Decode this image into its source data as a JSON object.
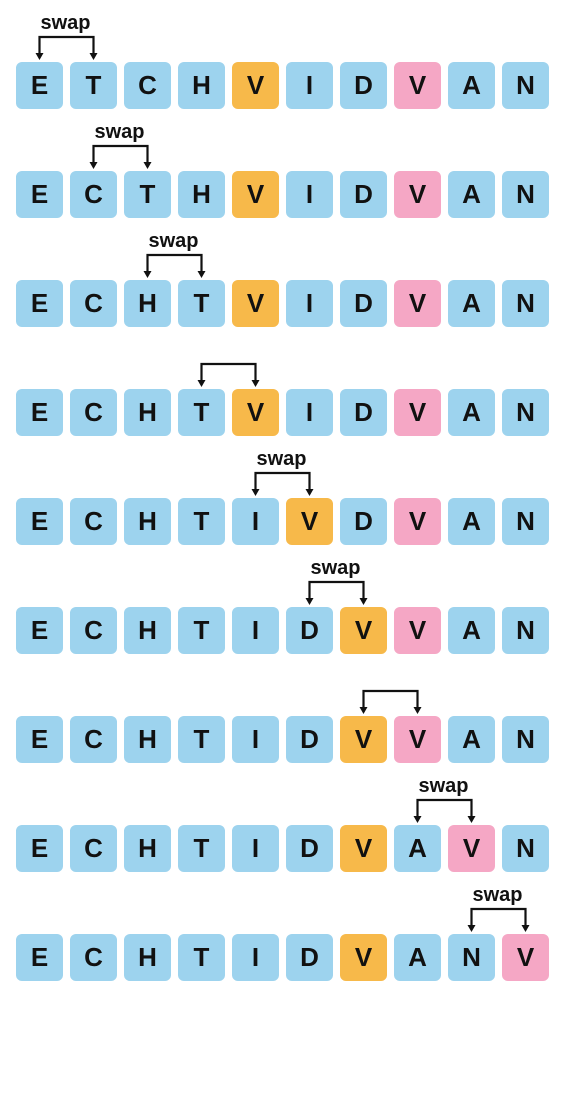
{
  "colors": {
    "blue": "#9dd3ee",
    "orange": "#f7b94a",
    "pink": "#f5a7c5",
    "text": "#111111",
    "arrow": "#111111"
  },
  "swap_label_text": "swap",
  "cell_size": 51,
  "cell_gap": 3,
  "cell_font_size": 26,
  "cell_border_radius": 8,
  "swap_label_font_size": 20,
  "steps": [
    {
      "show_label": true,
      "swap_from": 0,
      "swap_to": 1,
      "cells": [
        {
          "letter": "E",
          "color": "blue"
        },
        {
          "letter": "T",
          "color": "blue"
        },
        {
          "letter": "C",
          "color": "blue"
        },
        {
          "letter": "H",
          "color": "blue"
        },
        {
          "letter": "V",
          "color": "orange"
        },
        {
          "letter": "I",
          "color": "blue"
        },
        {
          "letter": "D",
          "color": "blue"
        },
        {
          "letter": "V",
          "color": "pink"
        },
        {
          "letter": "A",
          "color": "blue"
        },
        {
          "letter": "N",
          "color": "blue"
        }
      ]
    },
    {
      "show_label": true,
      "swap_from": 1,
      "swap_to": 2,
      "cells": [
        {
          "letter": "E",
          "color": "blue"
        },
        {
          "letter": "C",
          "color": "blue"
        },
        {
          "letter": "T",
          "color": "blue"
        },
        {
          "letter": "H",
          "color": "blue"
        },
        {
          "letter": "V",
          "color": "orange"
        },
        {
          "letter": "I",
          "color": "blue"
        },
        {
          "letter": "D",
          "color": "blue"
        },
        {
          "letter": "V",
          "color": "pink"
        },
        {
          "letter": "A",
          "color": "blue"
        },
        {
          "letter": "N",
          "color": "blue"
        }
      ]
    },
    {
      "show_label": true,
      "swap_from": 2,
      "swap_to": 3,
      "cells": [
        {
          "letter": "E",
          "color": "blue"
        },
        {
          "letter": "C",
          "color": "blue"
        },
        {
          "letter": "H",
          "color": "blue"
        },
        {
          "letter": "T",
          "color": "blue"
        },
        {
          "letter": "V",
          "color": "orange"
        },
        {
          "letter": "I",
          "color": "blue"
        },
        {
          "letter": "D",
          "color": "blue"
        },
        {
          "letter": "V",
          "color": "pink"
        },
        {
          "letter": "A",
          "color": "blue"
        },
        {
          "letter": "N",
          "color": "blue"
        }
      ]
    },
    {
      "show_label": false,
      "swap_from": 3,
      "swap_to": 4,
      "cells": [
        {
          "letter": "E",
          "color": "blue"
        },
        {
          "letter": "C",
          "color": "blue"
        },
        {
          "letter": "H",
          "color": "blue"
        },
        {
          "letter": "T",
          "color": "blue"
        },
        {
          "letter": "V",
          "color": "orange"
        },
        {
          "letter": "I",
          "color": "blue"
        },
        {
          "letter": "D",
          "color": "blue"
        },
        {
          "letter": "V",
          "color": "pink"
        },
        {
          "letter": "A",
          "color": "blue"
        },
        {
          "letter": "N",
          "color": "blue"
        }
      ]
    },
    {
      "show_label": true,
      "swap_from": 4,
      "swap_to": 5,
      "cells": [
        {
          "letter": "E",
          "color": "blue"
        },
        {
          "letter": "C",
          "color": "blue"
        },
        {
          "letter": "H",
          "color": "blue"
        },
        {
          "letter": "T",
          "color": "blue"
        },
        {
          "letter": "I",
          "color": "blue"
        },
        {
          "letter": "V",
          "color": "orange"
        },
        {
          "letter": "D",
          "color": "blue"
        },
        {
          "letter": "V",
          "color": "pink"
        },
        {
          "letter": "A",
          "color": "blue"
        },
        {
          "letter": "N",
          "color": "blue"
        }
      ]
    },
    {
      "show_label": true,
      "swap_from": 5,
      "swap_to": 6,
      "cells": [
        {
          "letter": "E",
          "color": "blue"
        },
        {
          "letter": "C",
          "color": "blue"
        },
        {
          "letter": "H",
          "color": "blue"
        },
        {
          "letter": "T",
          "color": "blue"
        },
        {
          "letter": "I",
          "color": "blue"
        },
        {
          "letter": "D",
          "color": "blue"
        },
        {
          "letter": "V",
          "color": "orange"
        },
        {
          "letter": "V",
          "color": "pink"
        },
        {
          "letter": "A",
          "color": "blue"
        },
        {
          "letter": "N",
          "color": "blue"
        }
      ]
    },
    {
      "show_label": false,
      "swap_from": 6,
      "swap_to": 7,
      "cells": [
        {
          "letter": "E",
          "color": "blue"
        },
        {
          "letter": "C",
          "color": "blue"
        },
        {
          "letter": "H",
          "color": "blue"
        },
        {
          "letter": "T",
          "color": "blue"
        },
        {
          "letter": "I",
          "color": "blue"
        },
        {
          "letter": "D",
          "color": "blue"
        },
        {
          "letter": "V",
          "color": "orange"
        },
        {
          "letter": "V",
          "color": "pink"
        },
        {
          "letter": "A",
          "color": "blue"
        },
        {
          "letter": "N",
          "color": "blue"
        }
      ]
    },
    {
      "show_label": true,
      "swap_from": 7,
      "swap_to": 8,
      "cells": [
        {
          "letter": "E",
          "color": "blue"
        },
        {
          "letter": "C",
          "color": "blue"
        },
        {
          "letter": "H",
          "color": "blue"
        },
        {
          "letter": "T",
          "color": "blue"
        },
        {
          "letter": "I",
          "color": "blue"
        },
        {
          "letter": "D",
          "color": "blue"
        },
        {
          "letter": "V",
          "color": "orange"
        },
        {
          "letter": "A",
          "color": "blue"
        },
        {
          "letter": "V",
          "color": "pink"
        },
        {
          "letter": "N",
          "color": "blue"
        }
      ]
    },
    {
      "show_label": true,
      "swap_from": 8,
      "swap_to": 9,
      "cells": [
        {
          "letter": "E",
          "color": "blue"
        },
        {
          "letter": "C",
          "color": "blue"
        },
        {
          "letter": "H",
          "color": "blue"
        },
        {
          "letter": "T",
          "color": "blue"
        },
        {
          "letter": "I",
          "color": "blue"
        },
        {
          "letter": "D",
          "color": "blue"
        },
        {
          "letter": "V",
          "color": "orange"
        },
        {
          "letter": "A",
          "color": "blue"
        },
        {
          "letter": "N",
          "color": "blue"
        },
        {
          "letter": "V",
          "color": "pink"
        }
      ]
    }
  ]
}
